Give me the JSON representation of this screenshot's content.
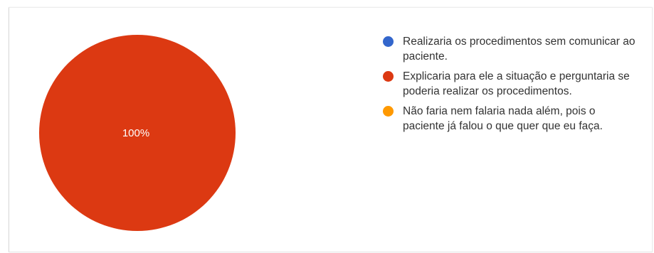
{
  "chart_data": {
    "type": "pie",
    "categories": [
      "Realizaria os procedimentos sem comunicar ao paciente.",
      "Explicaria para ele a situação e perguntaria se poderia realizar os procedimentos.",
      "Não faria nem falaria nada além, pois o paciente já falou o que quer que eu faça."
    ],
    "values": [
      0,
      100,
      0
    ],
    "colors": [
      "#3366cc",
      "#dc3912",
      "#ff9900"
    ],
    "data_labels": [
      "",
      "100%",
      ""
    ],
    "legend_position": "right"
  },
  "legend": {
    "items": [
      {
        "label": "Realizaria os procedimentos sem comunicar ao paciente.",
        "color": "#3366cc"
      },
      {
        "label": "Explicaria para ele a situação e perguntaria se poderia realizar os procedimentos.",
        "color": "#dc3912"
      },
      {
        "label": "Não faria nem falaria nada além, pois o paciente já falou o que quer que eu faça.",
        "color": "#ff9900"
      }
    ]
  }
}
